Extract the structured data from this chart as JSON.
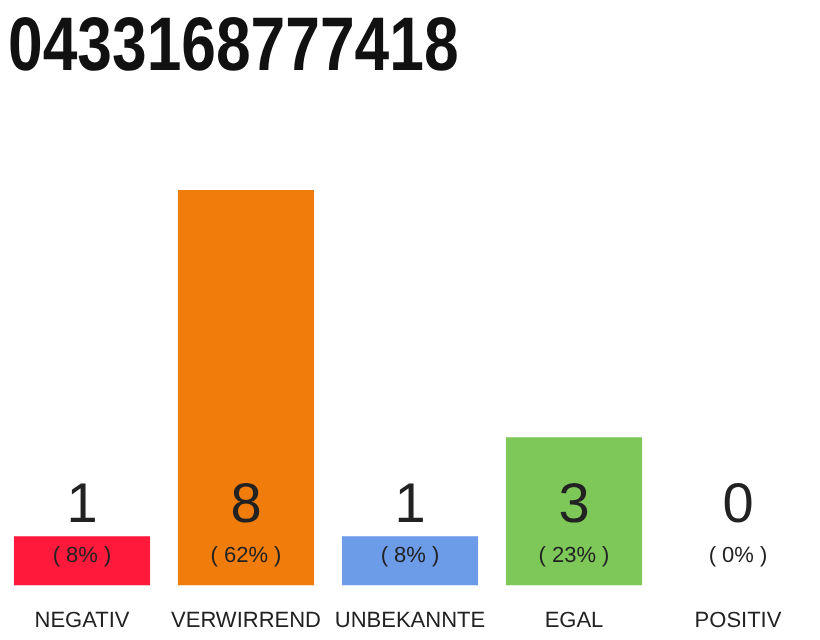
{
  "chart_data": {
    "type": "bar",
    "title": "0433168777418",
    "categories": [
      "NEGATIV",
      "VERWIRREND",
      "UNBEKANNTE",
      "EGAL",
      "POSITIV"
    ],
    "values": [
      1,
      8,
      1,
      3,
      0
    ],
    "colors": [
      "#ff1a3c",
      "#f07c0c",
      "#6c9be8",
      "#7ec85a",
      "#dddddd"
    ],
    "value_labels": [
      "1\n( 8% )",
      "8\n( 62% )",
      "1\n( 8% )",
      "3\n( 23% )",
      "0\n( 0% )"
    ],
    "ylim": [
      0,
      8
    ]
  }
}
